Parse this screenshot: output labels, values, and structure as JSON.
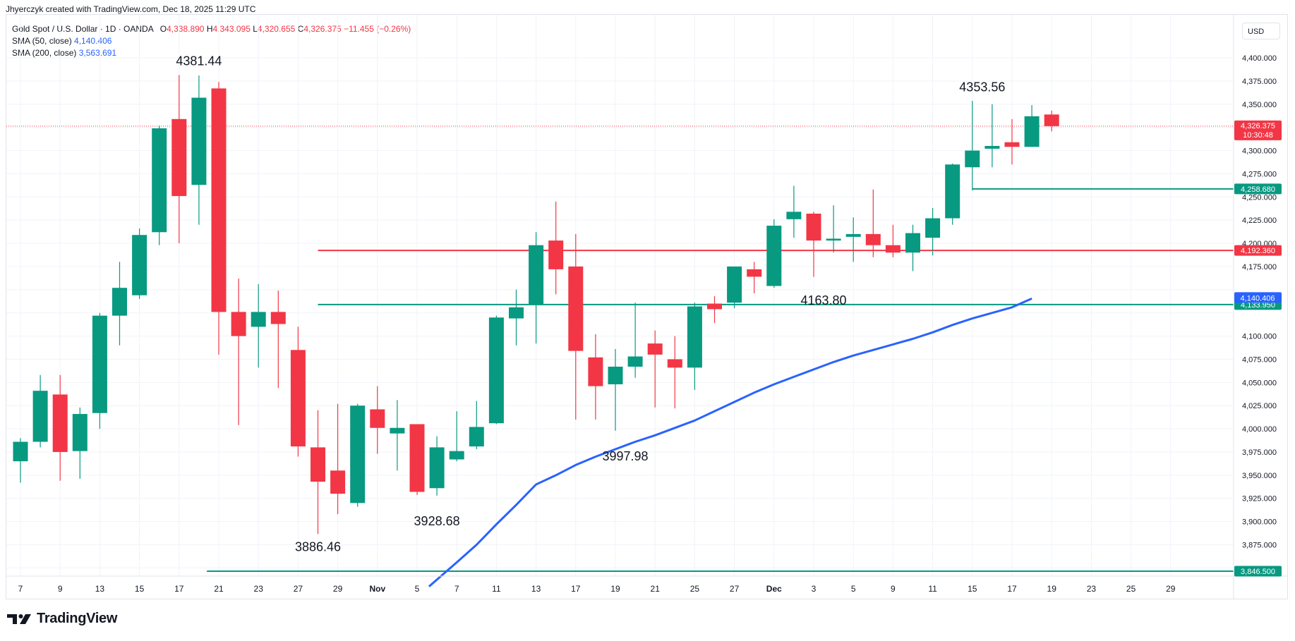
{
  "header": {
    "caption": "Jhyerczyk created with TradingView.com, Dec 18, 2025 11:29 UTC"
  },
  "legend": {
    "symbol": "Gold Spot / U.S. Dollar · 1D · OANDA",
    "o_label": "O",
    "o_value": "4,338.890",
    "h_label": "H",
    "h_value": "4,343.095",
    "l_label": "L",
    "l_value": "4,320.655",
    "c_label": "C",
    "c_value": "4,326.375",
    "change": "−11.455 (−0.26%)",
    "sma50_label": "SMA (50, close)",
    "sma50_value": "4,140.406",
    "sma200_label": "SMA (200, close)",
    "sma200_value": "3,563.691"
  },
  "currency": "USD",
  "logo_text": "TradingView",
  "colors": {
    "up": "#089981",
    "down": "#f23645",
    "sma": "#2962ff",
    "grid": "#f0f3fa"
  },
  "chart_data": {
    "type": "candlestick",
    "ylim": [
      3830,
      4420
    ],
    "y_ticks": [
      {
        "value": 3875,
        "label": "3,875.000"
      },
      {
        "value": 3900,
        "label": "3,900.000"
      },
      {
        "value": 3925,
        "label": "3,925.000"
      },
      {
        "value": 3950,
        "label": "3,950.000"
      },
      {
        "value": 3975,
        "label": "3,975.000"
      },
      {
        "value": 4000,
        "label": "4,000.000"
      },
      {
        "value": 4025,
        "label": "4,025.000"
      },
      {
        "value": 4050,
        "label": "4,050.000"
      },
      {
        "value": 4075,
        "label": "4,075.000"
      },
      {
        "value": 4100,
        "label": "4,100.000"
      },
      {
        "value": 4175,
        "label": "4,175.000"
      },
      {
        "value": 4200,
        "label": "4,200.000"
      },
      {
        "value": 4225,
        "label": "4,225.000"
      },
      {
        "value": 4250,
        "label": "4,250.000"
      },
      {
        "value": 4275,
        "label": "4,275.000"
      },
      {
        "value": 4300,
        "label": "4,300.000"
      },
      {
        "value": 4350,
        "label": "4,350.000"
      },
      {
        "value": 4375,
        "label": "4,375.000"
      },
      {
        "value": 4400,
        "label": "4,400.000"
      }
    ],
    "x_ticks": [
      {
        "i": 0,
        "label": "7"
      },
      {
        "i": 2,
        "label": "9"
      },
      {
        "i": 4,
        "label": "13"
      },
      {
        "i": 6,
        "label": "15"
      },
      {
        "i": 8,
        "label": "17"
      },
      {
        "i": 10,
        "label": "21"
      },
      {
        "i": 12,
        "label": "23"
      },
      {
        "i": 14,
        "label": "27"
      },
      {
        "i": 16,
        "label": "29"
      },
      {
        "i": 18,
        "label": "Nov",
        "bold": true
      },
      {
        "i": 20,
        "label": "5"
      },
      {
        "i": 22,
        "label": "7"
      },
      {
        "i": 24,
        "label": "11"
      },
      {
        "i": 26,
        "label": "13"
      },
      {
        "i": 28,
        "label": "17"
      },
      {
        "i": 30,
        "label": "19"
      },
      {
        "i": 32,
        "label": "21"
      },
      {
        "i": 34,
        "label": "25"
      },
      {
        "i": 36,
        "label": "27"
      },
      {
        "i": 38,
        "label": "Dec",
        "bold": true
      },
      {
        "i": 40,
        "label": "3"
      },
      {
        "i": 42,
        "label": "5"
      },
      {
        "i": 44,
        "label": "9"
      },
      {
        "i": 46,
        "label": "11"
      },
      {
        "i": 48,
        "label": "15"
      },
      {
        "i": 50,
        "label": "17"
      },
      {
        "i": 52,
        "label": "19"
      },
      {
        "i": 54,
        "label": "23"
      },
      {
        "i": 56,
        "label": "25"
      },
      {
        "i": 58,
        "label": "29"
      }
    ],
    "candles": [
      {
        "o": 3965,
        "h": 3990,
        "l": 3942,
        "c": 3986
      },
      {
        "o": 3986,
        "h": 4058,
        "l": 3980,
        "c": 4041
      },
      {
        "o": 4037,
        "h": 4058,
        "l": 3944,
        "c": 3975
      },
      {
        "o": 3976,
        "h": 4023,
        "l": 3946,
        "c": 4016
      },
      {
        "o": 4017,
        "h": 4125,
        "l": 4000,
        "c": 4122
      },
      {
        "o": 4122,
        "h": 4180,
        "l": 4090,
        "c": 4152
      },
      {
        "o": 4144,
        "h": 4216,
        "l": 4140,
        "c": 4209
      },
      {
        "o": 4212,
        "h": 4327,
        "l": 4198,
        "c": 4324
      },
      {
        "o": 4334,
        "h": 4381.44,
        "l": 4200,
        "c": 4251
      },
      {
        "o": 4263,
        "h": 4381,
        "l": 4220,
        "c": 4357
      },
      {
        "o": 4367,
        "h": 4374,
        "l": 4080,
        "c": 4126
      },
      {
        "o": 4126,
        "h": 4162,
        "l": 4004,
        "c": 4100
      },
      {
        "o": 4110,
        "h": 4156,
        "l": 4066,
        "c": 4126
      },
      {
        "o": 4126,
        "h": 4149,
        "l": 4044,
        "c": 4113
      },
      {
        "o": 4085,
        "h": 4110,
        "l": 3970,
        "c": 3981
      },
      {
        "o": 3980,
        "h": 4020,
        "l": 3886.46,
        "c": 3943
      },
      {
        "o": 3955,
        "h": 4027,
        "l": 3908,
        "c": 3930
      },
      {
        "o": 3920,
        "h": 4027,
        "l": 3916,
        "c": 4025
      },
      {
        "o": 4021,
        "h": 4046,
        "l": 3973,
        "c": 4001
      },
      {
        "o": 3995,
        "h": 4031,
        "l": 3955,
        "c": 4001
      },
      {
        "o": 4005,
        "h": 4005,
        "l": 3928.68,
        "c": 3932
      },
      {
        "o": 3936,
        "h": 3992,
        "l": 3928,
        "c": 3980
      },
      {
        "o": 3967,
        "h": 4019,
        "l": 3965,
        "c": 3976
      },
      {
        "o": 3981,
        "h": 4030,
        "l": 3978,
        "c": 4002
      },
      {
        "o": 4006,
        "h": 4122,
        "l": 4005,
        "c": 4120
      },
      {
        "o": 4119,
        "h": 4150,
        "l": 4090,
        "c": 4131
      },
      {
        "o": 4134,
        "h": 4212,
        "l": 4092,
        "c": 4198
      },
      {
        "o": 4203,
        "h": 4245,
        "l": 4145,
        "c": 4172
      },
      {
        "o": 4175,
        "h": 4210,
        "l": 4010,
        "c": 4084
      },
      {
        "o": 4077,
        "h": 4102,
        "l": 4010,
        "c": 4046
      },
      {
        "o": 4048,
        "h": 4086,
        "l": 3997.98,
        "c": 4067
      },
      {
        "o": 4067,
        "h": 4136,
        "l": 4055,
        "c": 4078
      },
      {
        "o": 4092,
        "h": 4106,
        "l": 4023,
        "c": 4080
      },
      {
        "o": 4075,
        "h": 4100,
        "l": 4022,
        "c": 4066
      },
      {
        "o": 4066,
        "h": 4136,
        "l": 4042,
        "c": 4132
      },
      {
        "o": 4135,
        "h": 4143,
        "l": 4114,
        "c": 4129
      },
      {
        "o": 4136,
        "h": 4175,
        "l": 4130,
        "c": 4175
      },
      {
        "o": 4172,
        "h": 4180,
        "l": 4146,
        "c": 4164
      },
      {
        "o": 4154,
        "h": 4226,
        "l": 4152,
        "c": 4219
      },
      {
        "o": 4226,
        "h": 4262,
        "l": 4206,
        "c": 4234
      },
      {
        "o": 4232,
        "h": 4234,
        "l": 4163.8,
        "c": 4203
      },
      {
        "o": 4203,
        "h": 4241,
        "l": 4190,
        "c": 4205
      },
      {
        "o": 4207,
        "h": 4228,
        "l": 4180,
        "c": 4210
      },
      {
        "o": 4210,
        "h": 4258,
        "l": 4185,
        "c": 4198
      },
      {
        "o": 4198,
        "h": 4220,
        "l": 4185,
        "c": 4190
      },
      {
        "o": 4190,
        "h": 4220,
        "l": 4170,
        "c": 4211
      },
      {
        "o": 4206,
        "h": 4238,
        "l": 4187,
        "c": 4227
      },
      {
        "o": 4227,
        "h": 4286,
        "l": 4220,
        "c": 4285
      },
      {
        "o": 4282,
        "h": 4353.56,
        "l": 4257,
        "c": 4300
      },
      {
        "o": 4302,
        "h": 4350,
        "l": 4282,
        "c": 4305
      },
      {
        "o": 4309,
        "h": 4334,
        "l": 4285,
        "c": 4304
      },
      {
        "o": 4304,
        "h": 4349,
        "l": 4304,
        "c": 4337
      },
      {
        "o": 4338.89,
        "h": 4343.095,
        "l": 4320.655,
        "c": 4326.375
      }
    ],
    "sma50": {
      "name": "SMA (50, close)",
      "points": [
        {
          "i": 20.6,
          "v": 3830
        },
        {
          "i": 22,
          "v": 3856
        },
        {
          "i": 23,
          "v": 3875
        },
        {
          "i": 24,
          "v": 3897
        },
        {
          "i": 25,
          "v": 3918
        },
        {
          "i": 26,
          "v": 3940
        },
        {
          "i": 27,
          "v": 3950
        },
        {
          "i": 28,
          "v": 3961
        },
        {
          "i": 29,
          "v": 3970
        },
        {
          "i": 30,
          "v": 3978
        },
        {
          "i": 31,
          "v": 3986
        },
        {
          "i": 32,
          "v": 3993
        },
        {
          "i": 33,
          "v": 4001
        },
        {
          "i": 34,
          "v": 4009
        },
        {
          "i": 35,
          "v": 4019
        },
        {
          "i": 36,
          "v": 4029
        },
        {
          "i": 37,
          "v": 4039
        },
        {
          "i": 38,
          "v": 4048
        },
        {
          "i": 39,
          "v": 4056
        },
        {
          "i": 40,
          "v": 4064
        },
        {
          "i": 41,
          "v": 4072
        },
        {
          "i": 42,
          "v": 4079
        },
        {
          "i": 43,
          "v": 4085
        },
        {
          "i": 44,
          "v": 4091
        },
        {
          "i": 45,
          "v": 4097
        },
        {
          "i": 46,
          "v": 4104
        },
        {
          "i": 47,
          "v": 4112
        },
        {
          "i": 48,
          "v": 4119
        },
        {
          "i": 49,
          "v": 4125
        },
        {
          "i": 50,
          "v": 4131
        },
        {
          "i": 51,
          "v": 4140.406
        }
      ]
    },
    "levels": [
      {
        "value": 4258.68,
        "label": "4,258.680",
        "color": "#089981",
        "from_i": 48
      },
      {
        "value": 4192.36,
        "label": "4,192.360",
        "color": "#f23645",
        "from_i": 15
      },
      {
        "value": 4133.95,
        "label": "4,133.950",
        "color": "#089981",
        "from_i": 15
      },
      {
        "value": 3846.5,
        "label": "3,846.500",
        "color": "#089981",
        "from_i": 9.4
      }
    ],
    "price_tags": [
      {
        "value": 4326.375,
        "label": "4,326.375",
        "sub": "10:30:48",
        "color": "#f23645"
      },
      {
        "value": 4140.406,
        "label": "4,140.406",
        "color": "#2962ff"
      }
    ],
    "last_price": 4326.375,
    "annotations": [
      {
        "text": "4381.44",
        "i": 9,
        "v": 4392
      },
      {
        "text": "3886.46",
        "i": 15,
        "v": 3868
      },
      {
        "text": "3928.68",
        "i": 21,
        "v": 3896
      },
      {
        "text": "3997.98",
        "i": 30.5,
        "v": 3966
      },
      {
        "text": "4163.80",
        "i": 40.5,
        "v": 4134
      },
      {
        "text": "4353.56",
        "i": 48.5,
        "v": 4364
      }
    ]
  }
}
